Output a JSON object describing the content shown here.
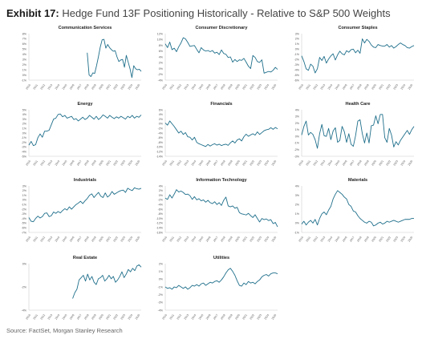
{
  "header": {
    "exhibit_label": "Exhibit 17:",
    "title": "Hedge Fund 13F Positioning Historically - Relative to S&P 500 Weights"
  },
  "footer": {
    "source": "Source: FactSet, Morgan Stanley Research"
  },
  "colors": {
    "line": "#1f6f8b",
    "axis": "#cccccc",
    "tick_text": "#555555"
  },
  "chart_data": [
    {
      "type": "line",
      "title": "Communication Services",
      "x_labels": [
        "2010",
        "2011",
        "2012",
        "2013",
        "2014",
        "2015",
        "2016",
        "2017",
        "2018",
        "2019",
        "2020",
        "2021",
        "2022",
        "2023",
        "2024",
        "2025"
      ],
      "y_ticks": [
        "8%",
        "7%",
        "6%",
        "5%",
        "4%",
        "3%",
        "2%",
        "1%",
        "0%",
        "-1%"
      ],
      "ylim": [
        -1,
        8
      ],
      "series": [
        {
          "x_start": 2018.0,
          "x_end": 2025.4,
          "values": [
            4.3,
            0.0,
            -0.3,
            0.4,
            0.3,
            1.8,
            3.5,
            5.4,
            6.8,
            6.9,
            5.2,
            5.9,
            5.3,
            4.9,
            4.6,
            4.7,
            3.5,
            2.6,
            2.9,
            3.0,
            1.5,
            3.8,
            2.5,
            1.2,
            -0.5,
            1.8,
            1.2,
            1.0,
            1.1,
            0.7
          ]
        }
      ]
    },
    {
      "type": "line",
      "title": "Consumer Discretionary",
      "x_labels": [
        "2010",
        "2011",
        "2012",
        "2013",
        "2014",
        "2015",
        "2016",
        "2017",
        "2018",
        "2019",
        "2020",
        "2021",
        "2022",
        "2023",
        "2024",
        "2025"
      ],
      "y_ticks": [
        "12%",
        "10%",
        "8%",
        "6%",
        "4%",
        "2%",
        "0%",
        "-2%",
        "-4%"
      ],
      "ylim": [
        -4,
        12
      ],
      "series": [
        {
          "x_start": 2010.0,
          "x_end": 2025.4,
          "values": [
            8.5,
            7.2,
            9.1,
            6.5,
            7.0,
            5.8,
            7.5,
            8.8,
            10.6,
            10.2,
            9.0,
            7.6,
            7.8,
            7.9,
            6.6,
            5.4,
            7.2,
            6.4,
            6.0,
            6.2,
            5.8,
            6.2,
            5.3,
            5.6,
            4.8,
            6.4,
            5.2,
            4.9,
            3.8,
            4.0,
            2.2,
            3.1,
            2.4,
            3.0,
            2.8,
            3.5,
            2.2,
            0.8,
            0.0,
            4.5,
            3.8,
            2.4,
            2.1,
            3.0,
            -1.6,
            -1.3,
            -1.0,
            -1.2,
            -0.6,
            0.4,
            -0.3
          ]
        }
      ]
    },
    {
      "type": "line",
      "title": "Consumer Staples",
      "x_labels": [
        "2010",
        "2011",
        "2012",
        "2013",
        "2014",
        "2015",
        "2016",
        "2017",
        "2018",
        "2019",
        "2020",
        "2021",
        "2022",
        "2023",
        "2024",
        "2025"
      ],
      "y_ticks": [
        "3%",
        "2%",
        "1%",
        "0%",
        "-1%",
        "-2%",
        "-3%",
        "-4%",
        "-5%",
        "-6%"
      ],
      "ylim": [
        -6,
        3
      ],
      "series": [
        {
          "x_start": 2010.0,
          "x_end": 2025.4,
          "values": [
            -1.3,
            -2.4,
            -3.8,
            -4.1,
            -2.9,
            -3.3,
            -4.6,
            -3.8,
            -1.6,
            -2.2,
            -1.4,
            -2.7,
            -1.9,
            -1.3,
            -0.9,
            -2.1,
            -1.1,
            -0.4,
            -0.9,
            -1.1,
            -0.3,
            -0.6,
            -0.1,
            0.0,
            -0.7,
            -0.2,
            -0.8,
            2.0,
            1.2,
            1.9,
            1.5,
            0.8,
            0.4,
            0.3,
            0.9,
            0.7,
            0.6,
            0.6,
            0.9,
            0.4,
            0.7,
            0.2,
            0.5,
            0.9,
            1.2,
            0.9,
            0.7,
            0.3,
            0.2,
            0.5,
            0.7
          ]
        }
      ]
    },
    {
      "type": "line",
      "title": "Energy",
      "x_labels": [
        "2010",
        "2011",
        "2012",
        "2013",
        "2014",
        "2015",
        "2016",
        "2017",
        "2018",
        "2019",
        "2020",
        "2021",
        "2022",
        "2023",
        "2024",
        "2025"
      ],
      "y_ticks": [
        "5%",
        "4%",
        "3%",
        "2%",
        "1%",
        "0%",
        "-1%",
        "-2%",
        "-3%",
        "-4%",
        "-5%"
      ],
      "ylim": [
        -5,
        5
      ],
      "series": [
        {
          "x_start": 2010.0,
          "x_end": 2025.4,
          "values": [
            -2.6,
            -1.8,
            -2.7,
            -2.5,
            -1.0,
            -0.2,
            -0.9,
            0.4,
            0.4,
            0.6,
            1.8,
            3.0,
            3.2,
            4.0,
            4.1,
            3.5,
            3.8,
            3.2,
            3.4,
            3.6,
            2.9,
            3.1,
            2.6,
            3.0,
            3.4,
            2.9,
            3.2,
            3.8,
            3.4,
            3.0,
            3.6,
            2.9,
            3.3,
            3.9,
            3.6,
            3.2,
            3.8,
            3.4,
            3.1,
            3.5,
            3.2,
            3.6,
            3.3,
            3.0,
            3.6,
            3.3,
            3.8,
            3.2,
            3.6,
            3.4,
            3.9
          ]
        }
      ]
    },
    {
      "type": "line",
      "title": "Financials",
      "x_labels": [
        "2010",
        "2011",
        "2012",
        "2013",
        "2014",
        "2015",
        "2016",
        "2017",
        "2018",
        "2019",
        "2020",
        "2021",
        "2022",
        "2023",
        "2024",
        "2025"
      ],
      "y_ticks": [
        "6%",
        "4%",
        "2%",
        "0%",
        "-2%",
        "-4%",
        "-6%",
        "-8%",
        "-10%",
        "-12%",
        "-14%"
      ],
      "ylim": [
        -14,
        6
      ],
      "series": [
        {
          "x_start": 2010.0,
          "x_end": 2025.4,
          "values": [
            0.3,
            -0.6,
            1.2,
            0.0,
            -1.2,
            -2.6,
            -4.0,
            -3.2,
            -4.6,
            -3.8,
            -5.6,
            -5.8,
            -7.0,
            -5.8,
            -8.0,
            -8.6,
            -9.0,
            -9.4,
            -9.8,
            -8.9,
            -9.6,
            -9.0,
            -8.6,
            -9.2,
            -8.8,
            -9.4,
            -9.0,
            -8.8,
            -9.3,
            -8.2,
            -7.4,
            -8.3,
            -7.0,
            -6.5,
            -7.4,
            -5.6,
            -4.5,
            -5.4,
            -4.8,
            -4.3,
            -4.9,
            -3.5,
            -4.6,
            -3.8,
            -3.0,
            -2.6,
            -2.4,
            -1.7,
            -2.4,
            -1.6,
            -2.2
          ]
        }
      ]
    },
    {
      "type": "line",
      "title": "Health Care",
      "x_labels": [
        "2010",
        "2011",
        "2012",
        "2013",
        "2014",
        "2015",
        "2016",
        "2017",
        "2018",
        "2019",
        "2020",
        "2021",
        "2022",
        "2023",
        "2024",
        "2025"
      ],
      "y_ticks": [
        "4%",
        "3%",
        "2%",
        "1%",
        "0%",
        "-1%",
        "-2%",
        "-3%"
      ],
      "ylim": [
        -3,
        4
      ],
      "series": [
        {
          "x_start": 2010.0,
          "x_end": 2025.4,
          "values": [
            0.2,
            1.5,
            2.3,
            0.2,
            0.6,
            0.3,
            -0.5,
            -1.8,
            0.4,
            1.8,
            0.1,
            0.0,
            1.2,
            -0.5,
            0.8,
            1.3,
            -0.9,
            -0.6,
            1.5,
            0.7,
            -0.9,
            0.4,
            -1.2,
            -1.5,
            0.1,
            2.3,
            2.5,
            0.4,
            -1.0,
            0.5,
            -1.0,
            1.6,
            1.7,
            3.1,
            1.9,
            3.3,
            3.3,
            -0.2,
            -0.9,
            1.2,
            0.2,
            -1.6,
            -0.8,
            -1.3,
            -0.6,
            -0.1,
            0.4,
            0.9,
            0.3,
            1.0,
            1.5
          ]
        }
      ]
    },
    {
      "type": "line",
      "title": "Industrials",
      "x_labels": [
        "2010",
        "2011",
        "2012",
        "2013",
        "2014",
        "2015",
        "2016",
        "2017",
        "2018",
        "2019",
        "2020",
        "2021",
        "2022",
        "2023",
        "2024",
        "2025"
      ],
      "y_ticks": [
        "3%",
        "2%",
        "1%",
        "0%",
        "-1%",
        "-2%",
        "-3%",
        "-4%",
        "-5%",
        "-6%",
        "-7%"
      ],
      "ylim": [
        -7,
        3
      ],
      "series": [
        {
          "x_start": 2010.0,
          "x_end": 2025.4,
          "values": [
            -3.8,
            -4.6,
            -4.7,
            -4.0,
            -3.5,
            -3.9,
            -3.6,
            -2.9,
            -2.8,
            -3.6,
            -3.4,
            -2.6,
            -2.9,
            -2.5,
            -2.8,
            -2.3,
            -1.9,
            -2.2,
            -1.5,
            -2.0,
            -1.5,
            -1.0,
            -0.7,
            -0.3,
            -0.8,
            -0.2,
            0.3,
            1.0,
            1.3,
            0.5,
            1.1,
            1.6,
            0.8,
            0.5,
            1.5,
            0.6,
            1.0,
            1.8,
            1.2,
            1.5,
            1.8,
            2.0,
            2.1,
            1.6,
            2.5,
            2.2,
            2.0,
            2.6,
            2.4,
            2.3,
            2.5
          ]
        }
      ]
    },
    {
      "type": "line",
      "title": "Information Technology",
      "x_labels": [
        "2010",
        "2011",
        "2012",
        "2013",
        "2014",
        "2015",
        "2016",
        "2017",
        "2018",
        "2019",
        "2020",
        "2021",
        "2022",
        "2023",
        "2024",
        "2025"
      ],
      "y_ticks": [
        "4%",
        "2%",
        "0%",
        "-2%",
        "-4%",
        "-6%",
        "-8%",
        "-10%",
        "-12%",
        "-14%",
        "-16%"
      ],
      "ylim": [
        -16,
        4
      ],
      "series": [
        {
          "x_start": 2010.0,
          "x_end": 2025.4,
          "values": [
            -1.2,
            -1.8,
            0.2,
            -1.2,
            0.5,
            2.4,
            1.4,
            1.8,
            1.2,
            0.3,
            0.5,
            -0.2,
            -1.8,
            -0.6,
            -2.0,
            -1.5,
            -2.4,
            -2.0,
            -3.0,
            -2.2,
            -3.2,
            -3.6,
            -2.8,
            -4.0,
            -3.2,
            -4.4,
            -2.2,
            -0.8,
            -4.6,
            -5.0,
            -4.6,
            -5.6,
            -5.2,
            -7.5,
            -8.0,
            -8.2,
            -8.5,
            -7.8,
            -8.8,
            -9.6,
            -8.4,
            -10.0,
            -11.5,
            -10.0,
            -10.5,
            -10.2,
            -10.9,
            -10.5,
            -12.2,
            -11.7,
            -13.6
          ]
        }
      ]
    },
    {
      "type": "line",
      "title": "Materials",
      "x_labels": [
        "2010",
        "2011",
        "2012",
        "2013",
        "2014",
        "2015",
        "2016",
        "2017",
        "2018",
        "2019",
        "2020",
        "2021",
        "2022",
        "2023",
        "2024",
        "2025"
      ],
      "y_ticks": [
        "4%",
        "3%",
        "2%",
        "1%",
        "0%",
        "-1%"
      ],
      "ylim": [
        -1,
        4
      ],
      "series": [
        {
          "x_start": 2010.0,
          "x_end": 2025.4,
          "values": [
            -0.1,
            0.2,
            -0.2,
            0.1,
            0.3,
            0.0,
            0.4,
            -0.2,
            0.5,
            1.0,
            1.2,
            0.9,
            1.4,
            1.8,
            2.6,
            3.1,
            3.5,
            3.3,
            3.1,
            2.8,
            2.6,
            2.0,
            1.8,
            1.3,
            1.2,
            0.8,
            0.5,
            0.3,
            0.1,
            0.0,
            0.2,
            0.1,
            -0.3,
            -0.2,
            0.0,
            0.1,
            -0.1,
            0.0,
            0.2,
            0.1,
            0.2,
            0.3,
            0.2,
            0.1,
            0.2,
            0.3,
            0.4,
            0.4,
            0.4,
            0.5,
            0.5
          ]
        }
      ]
    },
    {
      "type": "line",
      "title": "Real Estate",
      "x_labels": [
        "2010",
        "2011",
        "2012",
        "2013",
        "2014",
        "2015",
        "2016",
        "2017",
        "2018",
        "2019",
        "2020",
        "2021",
        "2022",
        "2023",
        "2024",
        "2025"
      ],
      "y_ticks": [
        "0%",
        "-2%",
        "-4%"
      ],
      "ylim": [
        -4,
        0
      ],
      "series": [
        {
          "x_start": 2016.0,
          "x_end": 2025.4,
          "values": [
            -3.0,
            -2.5,
            -2.2,
            -1.4,
            -1.2,
            -1.0,
            -1.5,
            -0.9,
            -1.4,
            -1.1,
            -1.6,
            -1.8,
            -1.3,
            -1.2,
            -1.0,
            -1.5,
            -1.3,
            -1.0,
            -1.3,
            -1.1,
            -1.6,
            -1.4,
            -1.1,
            -0.7,
            -1.2,
            -0.9,
            -0.5,
            -0.7,
            -0.4,
            -0.6,
            -0.2,
            -0.1,
            -0.3
          ]
        }
      ]
    },
    {
      "type": "line",
      "title": "Utilities",
      "x_labels": [
        "2010",
        "2011",
        "2012",
        "2013",
        "2014",
        "2015",
        "2016",
        "2017",
        "2018",
        "2019",
        "2020",
        "2021",
        "2022",
        "2023",
        "2024",
        "2025"
      ],
      "y_ticks": [
        "2%",
        "1%",
        "0%",
        "-1%",
        "-2%",
        "-3%",
        "-4%"
      ],
      "ylim": [
        -4,
        2
      ],
      "series": [
        {
          "x_start": 2010.0,
          "x_end": 2025.4,
          "values": [
            -1.0,
            -1.2,
            -1.1,
            -1.3,
            -1.0,
            -1.1,
            -0.8,
            -1.0,
            -1.2,
            -1.0,
            -1.3,
            -1.1,
            -0.8,
            -0.9,
            -0.7,
            -0.9,
            -0.6,
            -0.5,
            -0.8,
            -0.6,
            -0.4,
            -0.5,
            -0.3,
            -0.2,
            -0.4,
            -0.1,
            0.3,
            0.8,
            1.2,
            1.4,
            1.0,
            0.5,
            -0.2,
            -0.8,
            -0.9,
            -0.5,
            -0.7,
            -0.3,
            -0.5,
            -0.4,
            -0.6,
            -0.3,
            -0.1,
            0.3,
            0.5,
            0.6,
            0.4,
            0.7,
            0.8,
            0.8,
            0.7
          ]
        }
      ]
    }
  ]
}
